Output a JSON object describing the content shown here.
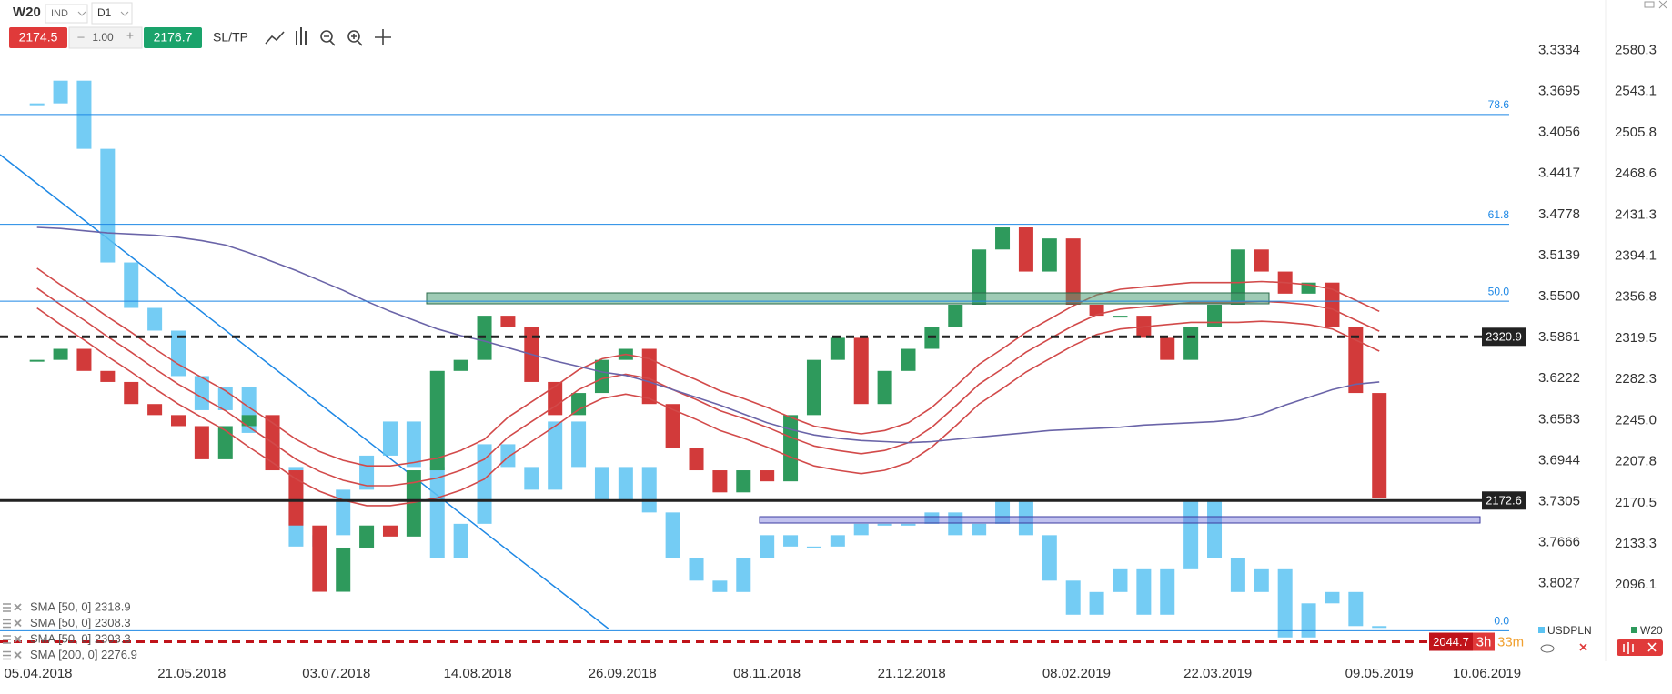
{
  "toolbar": {
    "symbol": "W20",
    "market": "IND",
    "timeframe": "D1",
    "sell": "2174.5",
    "minus": "–",
    "volume": "1.00",
    "plus": "+",
    "buy": "2176.7",
    "sltp": "SL/TP"
  },
  "countdown": [
    "3h",
    "33m"
  ],
  "chart_data": {
    "type": "candlestick",
    "x": [
      "05.04.2018",
      "12.04.2018",
      "19.04.2018",
      "26.04.2018",
      "03.05.2018",
      "10.05.2018",
      "17.05.2018",
      "24.05.2018",
      "31.05.2018",
      "07.06.2018",
      "14.06.2018",
      "21.06.2018",
      "28.06.2018",
      "05.07.2018",
      "12.07.2018",
      "19.07.2018",
      "26.07.2018",
      "02.08.2018",
      "09.08.2018",
      "16.08.2018",
      "23.08.2018",
      "30.08.2018",
      "06.09.2018",
      "13.09.2018",
      "20.09.2018",
      "27.09.2018",
      "04.10.2018",
      "11.10.2018",
      "18.10.2018",
      "25.10.2018",
      "01.11.2018",
      "08.11.2018",
      "15.11.2018",
      "22.11.2018",
      "29.11.2018",
      "06.12.2018",
      "13.12.2018",
      "20.12.2018",
      "27.12.2018",
      "03.01.2019",
      "10.01.2019",
      "17.01.2019",
      "24.01.2019",
      "31.01.2019",
      "07.02.2019",
      "14.02.2019",
      "21.02.2019",
      "28.02.2019",
      "07.03.2019",
      "14.03.2019",
      "21.03.2019",
      "28.03.2019",
      "04.04.2019",
      "11.04.2019",
      "18.04.2019",
      "25.04.2019",
      "02.05.2019",
      "09.05.2019"
    ],
    "xlim": [
      "25.03.2018",
      "15.07.2019"
    ],
    "xticks": [
      "05.04.2018",
      "21.05.2018",
      "03.07.2018",
      "14.08.2018",
      "26.09.2018",
      "08.11.2018",
      "21.12.2018",
      "08.02.2019",
      "22.03.2019",
      "09.05.2019",
      "10.06.2019"
    ],
    "ylim": [
      2027,
      2626
    ],
    "yticks": [
      2580.3,
      2543.1,
      2505.8,
      2468.6,
      2431.3,
      2394.1,
      2356.8,
      2319.5,
      2282.3,
      {
        "value": 2245,
        "label": "2245.0"
      },
      2207.8,
      2170.5,
      2133.3,
      2096.1
    ],
    "y2lim": [
      3.871,
      3.289
    ],
    "y2ticks": [
      3.3334,
      3.3695,
      3.4056,
      3.4417,
      3.4778,
      3.5139,
      {
        "value": 3.55,
        "label": "3.5500"
      },
      3.5861,
      3.6222,
      3.6583,
      3.6944,
      3.7305,
      3.7666,
      3.8027
    ],
    "series": [
      {
        "name": "USDPLN",
        "kind": "candle",
        "axis": "y2",
        "color": "#5cc3f2",
        "down_color": "#5cc3f2",
        "values": [
          3.38,
          3.36,
          3.42,
          3.52,
          3.56,
          3.58,
          3.62,
          3.65,
          3.63,
          3.67,
          3.7,
          3.77,
          3.76,
          3.72,
          3.69,
          3.66,
          3.7,
          3.78,
          3.75,
          3.68,
          3.7,
          3.72,
          3.66,
          3.7,
          3.73,
          3.7,
          3.74,
          3.78,
          3.8,
          3.81,
          3.78,
          3.76,
          3.77,
          3.77,
          3.76,
          3.75,
          3.75,
          3.75,
          3.74,
          3.76,
          3.75,
          3.73,
          3.76,
          3.8,
          3.83,
          3.81,
          3.79,
          3.83,
          3.79,
          3.73,
          3.78,
          3.81,
          3.79,
          3.85,
          3.82,
          3.81,
          3.84,
          3.84
        ]
      },
      {
        "name": "W20",
        "kind": "candle",
        "color": "#2e9a5c",
        "down_color": "#d23a3a",
        "values": [
          2300,
          2310,
          2290,
          2280,
          2260,
          2250,
          2240,
          2210,
          2240,
          2250,
          2200,
          2150,
          2090,
          2130,
          2150,
          2140,
          2200,
          2290,
          2300,
          2340,
          2330,
          2280,
          2250,
          2270,
          2300,
          2310,
          2260,
          2220,
          2200,
          2180,
          2200,
          2190,
          2250,
          2300,
          2320,
          2260,
          2290,
          2310,
          2330,
          2350,
          2400,
          2420,
          2380,
          2410,
          2350,
          2340,
          2340,
          2320,
          2300,
          2330,
          2350,
          2400,
          2380,
          2360,
          2370,
          2330,
          2270,
          2174.5
        ]
      },
      {
        "name": "SMA [50, 0] 2318.9",
        "kind": "line",
        "color": "#d24a4a",
        "values": [
          2383,
          2368,
          2354,
          2339,
          2325,
          2310,
          2296,
          2284,
          2272,
          2257,
          2243,
          2228,
          2217,
          2209,
          2204,
          2204,
          2207,
          2211,
          2218,
          2228,
          2248,
          2262,
          2276,
          2291,
          2301,
          2305,
          2301,
          2291,
          2282,
          2272,
          2265,
          2257,
          2248,
          2240,
          2236,
          2233,
          2236,
          2243,
          2257,
          2276,
          2296,
          2310,
          2325,
          2337,
          2349,
          2359,
          2364,
          2366,
          2368,
          2370,
          2370,
          2370,
          2371,
          2370,
          2368,
          2364,
          2354,
          2344
        ]
      },
      {
        "name": "SMA [50, 0] 2308.3",
        "kind": "line",
        "color": "#d24a4a",
        "values": [
          2365,
          2350,
          2336,
          2321,
          2307,
          2292,
          2278,
          2266,
          2254,
          2239,
          2225,
          2210,
          2199,
          2191,
          2186,
          2186,
          2189,
          2193,
          2200,
          2210,
          2230,
          2244,
          2258,
          2273,
          2283,
          2287,
          2283,
          2273,
          2264,
          2254,
          2247,
          2239,
          2230,
          2222,
          2218,
          2215,
          2218,
          2225,
          2239,
          2258,
          2278,
          2292,
          2307,
          2319,
          2331,
          2341,
          2346,
          2348,
          2350,
          2352,
          2352,
          2352,
          2353,
          2352,
          2350,
          2346,
          2336,
          2326
        ]
      },
      {
        "name": "SMA [50, 0] 2303.3",
        "kind": "line",
        "color": "#d24a4a",
        "values": [
          2347,
          2332,
          2318,
          2303,
          2289,
          2274,
          2260,
          2248,
          2236,
          2221,
          2207,
          2192,
          2181,
          2173,
          2168,
          2168,
          2171,
          2175,
          2182,
          2192,
          2212,
          2226,
          2240,
          2255,
          2265,
          2269,
          2265,
          2255,
          2246,
          2236,
          2229,
          2221,
          2212,
          2204,
          2200,
          2197,
          2200,
          2207,
          2221,
          2240,
          2260,
          2274,
          2289,
          2301,
          2313,
          2323,
          2328,
          2330,
          2332,
          2334,
          2334,
          2334,
          2335,
          2334,
          2332,
          2328,
          2318,
          2308
        ]
      },
      {
        "name": "SMA [200, 0] 2276.9",
        "kind": "line",
        "color": "#6a64a8",
        "values": [
          2420,
          2419,
          2417,
          2415,
          2414,
          2413,
          2411,
          2408,
          2404,
          2397,
          2389,
          2381,
          2372,
          2363,
          2353,
          2344,
          2336,
          2328,
          2322,
          2317,
          2311,
          2305,
          2299,
          2294,
          2289,
          2286,
          2280,
          2273,
          2266,
          2259,
          2251,
          2243,
          2237,
          2232,
          2229,
          2227,
          2226,
          2225,
          2226,
          2228,
          2230,
          2232,
          2234,
          2236,
          2237,
          2238,
          2239,
          2241,
          2242,
          2243,
          2244,
          2246,
          2251,
          2259,
          2266,
          2273,
          2278,
          2280
        ]
      }
    ],
    "fib_levels": [
      {
        "label": "78.6",
        "value": 2522.3
      },
      {
        "label": "61.8",
        "value": 2422.8
      },
      {
        "label": "50.0",
        "value": 2353.2
      },
      {
        "label": "0.0",
        "value": 2054.7
      }
    ],
    "fib_color": "#1e88e5",
    "price_lines": [
      {
        "value": 2320.9,
        "color": "#222222",
        "dashed": true
      },
      {
        "value": 2172.6,
        "color": "#222222",
        "dashed": false
      },
      {
        "value": 2044.7,
        "color": "#c0131a",
        "dashed": true
      }
    ]
  }
}
